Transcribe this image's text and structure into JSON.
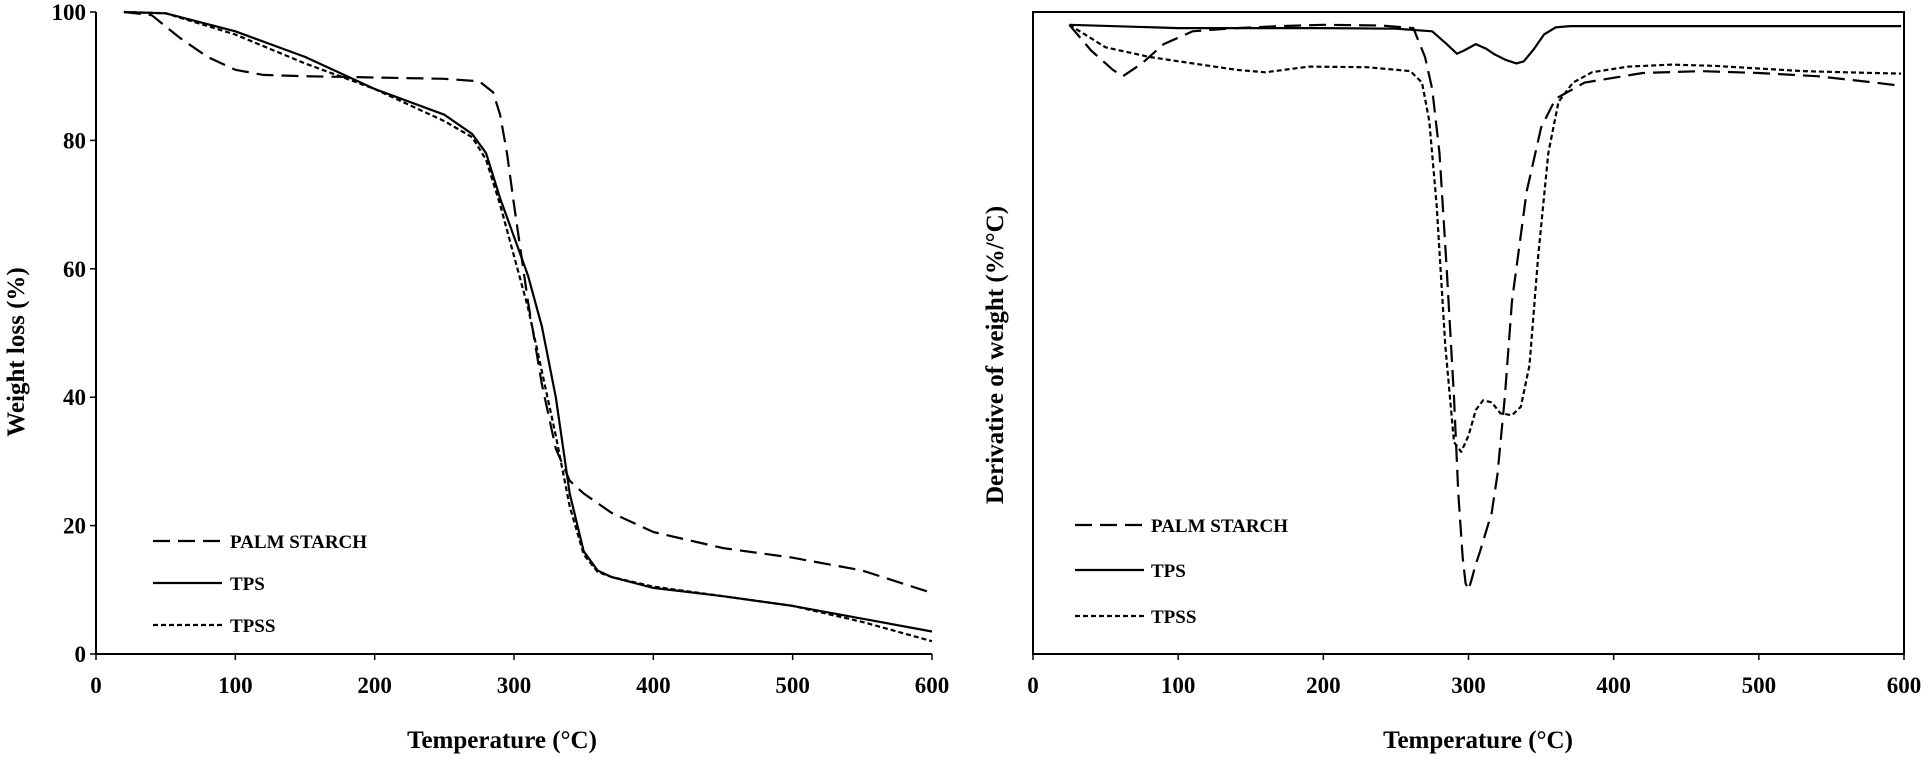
{
  "chart_data": [
    {
      "type": "line",
      "title": "",
      "xlabel": "Temperature (°C)",
      "ylabel": "Weight loss (%)",
      "xlim": [
        0,
        600
      ],
      "ylim": [
        0,
        100
      ],
      "xticks": [
        0,
        100,
        200,
        300,
        400,
        500,
        600
      ],
      "yticks": [
        0,
        20,
        40,
        60,
        80,
        100
      ],
      "legend_position": "bottom-left",
      "series": [
        {
          "name": "PALM STARCH",
          "style": "long-dash",
          "x": [
            20,
            40,
            60,
            80,
            100,
            120,
            150,
            200,
            250,
            275,
            285,
            290,
            295,
            300,
            310,
            320,
            330,
            340,
            350,
            370,
            400,
            450,
            500,
            550,
            600
          ],
          "y": [
            100,
            99.5,
            96,
            93,
            91,
            90.2,
            90,
            89.8,
            89.6,
            89.2,
            87.5,
            84,
            78,
            70,
            55,
            42,
            32,
            27,
            25,
            22,
            19,
            16.5,
            15,
            13,
            9.5
          ]
        },
        {
          "name": "TPS",
          "style": "solid",
          "x": [
            20,
            50,
            100,
            150,
            200,
            250,
            270,
            280,
            290,
            300,
            310,
            320,
            330,
            340,
            350,
            360,
            370,
            400,
            450,
            500,
            550,
            600
          ],
          "y": [
            100,
            99.8,
            97,
            93,
            88,
            84,
            81,
            78,
            71,
            65,
            59,
            51,
            40,
            25,
            16,
            13,
            12,
            10.3,
            9,
            7.5,
            5.5,
            3.5
          ]
        },
        {
          "name": "TPSS",
          "style": "short-dash",
          "x": [
            20,
            50,
            100,
            150,
            200,
            250,
            270,
            280,
            290,
            300,
            310,
            320,
            330,
            340,
            350,
            360,
            370,
            400,
            450,
            500,
            550,
            600
          ],
          "y": [
            100,
            99.8,
            96.5,
            92,
            88,
            83,
            80.5,
            77,
            70,
            62,
            54,
            44,
            34,
            23,
            15.5,
            12.8,
            12,
            10.5,
            9,
            7.5,
            5,
            2
          ]
        }
      ]
    },
    {
      "type": "line",
      "title": "",
      "xlabel": "Temperature (°C)",
      "ylabel": "Derivative of weight  (%/°C)",
      "xlim": [
        0,
        600
      ],
      "ylim": [
        0,
        100
      ],
      "y_tick_labels_shown": false,
      "xticks": [
        0,
        100,
        200,
        300,
        400,
        500,
        600
      ],
      "legend_position": "bottom-left",
      "series": [
        {
          "name": "PALM STARCH",
          "style": "long-dash",
          "x": [
            25,
            40,
            55,
            62,
            75,
            90,
            110,
            140,
            170,
            200,
            240,
            262,
            270,
            275,
            280,
            285,
            290,
            293,
            296,
            298,
            300,
            302,
            305,
            308,
            312,
            316,
            320,
            325,
            330,
            340,
            350,
            360,
            380,
            420,
            460,
            500,
            540,
            580,
            598
          ],
          "y": [
            98,
            94,
            91,
            90,
            92,
            95,
            97,
            97.5,
            97.8,
            98,
            97.9,
            97.5,
            93,
            88,
            78,
            60,
            40,
            25,
            15,
            11,
            10,
            11.5,
            14,
            16,
            19,
            22,
            28,
            40,
            55,
            72,
            82,
            86.5,
            89,
            90.5,
            90.8,
            90.5,
            90,
            89,
            88.5
          ]
        },
        {
          "name": "TPS",
          "style": "solid",
          "x": [
            25,
            100,
            200,
            250,
            275,
            285,
            292,
            297,
            305,
            312,
            318,
            326,
            333,
            338,
            345,
            352,
            360,
            370,
            400,
            500,
            598
          ],
          "y": [
            98,
            97.5,
            97.5,
            97.4,
            97,
            95,
            93.5,
            94,
            95,
            94.3,
            93.4,
            92.5,
            92,
            92.3,
            94.2,
            96.5,
            97.6,
            97.8,
            97.8,
            97.8,
            97.8
          ]
        },
        {
          "name": "TPSS",
          "style": "short-dash",
          "x": [
            25,
            50,
            80,
            110,
            140,
            160,
            190,
            230,
            260,
            268,
            273,
            278,
            284,
            290,
            295,
            300,
            305,
            310,
            316,
            322,
            330,
            336,
            342,
            348,
            355,
            362,
            372,
            385,
            410,
            440,
            470,
            500,
            530,
            560,
            598
          ],
          "y": [
            98,
            94.5,
            93,
            92,
            91,
            90.6,
            91.5,
            91.4,
            90.8,
            89,
            83,
            70,
            48,
            33,
            31.5,
            34,
            38,
            39.5,
            39.2,
            37.5,
            37.2,
            38.5,
            45,
            62,
            78,
            86,
            89,
            90.6,
            91.5,
            91.8,
            91.6,
            91.2,
            90.8,
            90.6,
            90.4
          ]
        }
      ]
    }
  ]
}
